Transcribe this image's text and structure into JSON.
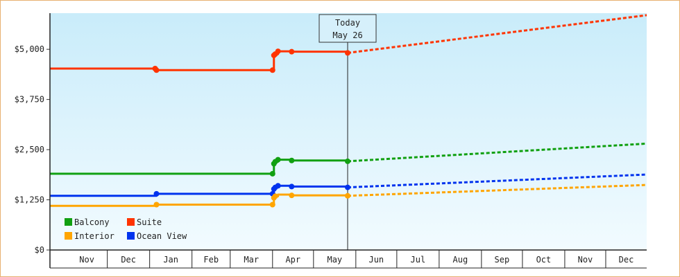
{
  "chart_data": {
    "type": "line",
    "y_ticks": [
      0,
      1250,
      2500,
      3750,
      5000
    ],
    "y_tick_labels": [
      "$0",
      "$1,250",
      "$2,500",
      "$3,750",
      "$5,000"
    ],
    "ylim": [
      0,
      5900
    ],
    "xlim": [
      "2024-10-20",
      "2025-12-31"
    ],
    "months": [
      {
        "label": "Nov",
        "start": "2024-11-01",
        "end": "2024-12-01"
      },
      {
        "label": "Dec",
        "start": "2024-12-01",
        "end": "2025-01-01"
      },
      {
        "label": "Jan",
        "start": "2025-01-01",
        "end": "2025-02-01"
      },
      {
        "label": "Feb",
        "start": "2025-02-01",
        "end": "2025-03-01"
      },
      {
        "label": "Mar",
        "start": "2025-03-01",
        "end": "2025-04-01"
      },
      {
        "label": "Apr",
        "start": "2025-04-01",
        "end": "2025-05-01"
      },
      {
        "label": "May",
        "start": "2025-05-01",
        "end": "2025-06-01"
      },
      {
        "label": "Jun",
        "start": "2025-06-01",
        "end": "2025-07-01"
      },
      {
        "label": "Jul",
        "start": "2025-07-01",
        "end": "2025-08-01"
      },
      {
        "label": "Aug",
        "start": "2025-08-01",
        "end": "2025-09-01"
      },
      {
        "label": "Sep",
        "start": "2025-09-01",
        "end": "2025-10-01"
      },
      {
        "label": "Oct",
        "start": "2025-10-01",
        "end": "2025-11-01"
      },
      {
        "label": "Nov",
        "start": "2025-11-01",
        "end": "2025-12-01"
      },
      {
        "label": "Dec",
        "start": "2025-12-01",
        "end": "2025-12-31"
      }
    ],
    "today": {
      "line1": "Today",
      "line2": "May 26",
      "date": "2025-05-26"
    },
    "legend": {
      "placement": "bottom-left"
    },
    "series": [
      {
        "name": "Suite",
        "color": "#ff3300",
        "history": [
          {
            "x": "2024-10-20",
            "y": 4520
          },
          {
            "x": "2025-01-05",
            "y": 4520
          },
          {
            "x": "2025-01-06",
            "y": 4480
          },
          {
            "x": "2025-04-01",
            "y": 4480
          },
          {
            "x": "2025-04-02",
            "y": 4850
          },
          {
            "x": "2025-04-03",
            "y": 4880
          },
          {
            "x": "2025-04-05",
            "y": 4950
          },
          {
            "x": "2025-04-15",
            "y": 4940
          },
          {
            "x": "2025-05-26",
            "y": 4910
          }
        ],
        "markers": [
          "2025-01-05",
          "2025-01-06",
          "2025-04-01",
          "2025-04-02",
          "2025-04-03",
          "2025-04-05",
          "2025-04-15",
          "2025-05-26"
        ],
        "forecast": [
          {
            "x": "2025-05-26",
            "y": 4910
          },
          {
            "x": "2025-12-31",
            "y": 5850
          }
        ]
      },
      {
        "name": "Balcony",
        "color": "#11a011",
        "history": [
          {
            "x": "2024-10-20",
            "y": 1900
          },
          {
            "x": "2025-04-01",
            "y": 1900
          },
          {
            "x": "2025-04-02",
            "y": 2150
          },
          {
            "x": "2025-04-03",
            "y": 2200
          },
          {
            "x": "2025-04-05",
            "y": 2250
          },
          {
            "x": "2025-04-15",
            "y": 2230
          },
          {
            "x": "2025-05-26",
            "y": 2210
          }
        ],
        "markers": [
          "2025-04-01",
          "2025-04-02",
          "2025-04-03",
          "2025-04-05",
          "2025-04-15",
          "2025-05-26"
        ],
        "forecast": [
          {
            "x": "2025-05-26",
            "y": 2210
          },
          {
            "x": "2025-12-31",
            "y": 2650
          }
        ]
      },
      {
        "name": "Ocean View",
        "color": "#0033ee",
        "history": [
          {
            "x": "2024-10-20",
            "y": 1350
          },
          {
            "x": "2025-01-05",
            "y": 1350
          },
          {
            "x": "2025-01-06",
            "y": 1400
          },
          {
            "x": "2025-04-01",
            "y": 1400
          },
          {
            "x": "2025-04-02",
            "y": 1520
          },
          {
            "x": "2025-04-03",
            "y": 1560
          },
          {
            "x": "2025-04-05",
            "y": 1600
          },
          {
            "x": "2025-04-15",
            "y": 1580
          },
          {
            "x": "2025-05-26",
            "y": 1560
          }
        ],
        "markers": [
          "2025-01-06",
          "2025-04-01",
          "2025-04-02",
          "2025-04-03",
          "2025-04-05",
          "2025-04-15",
          "2025-05-26"
        ],
        "forecast": [
          {
            "x": "2025-05-26",
            "y": 1560
          },
          {
            "x": "2025-12-31",
            "y": 1880
          }
        ]
      },
      {
        "name": "Interior",
        "color": "#ffa500",
        "history": [
          {
            "x": "2024-10-20",
            "y": 1100
          },
          {
            "x": "2025-01-05",
            "y": 1100
          },
          {
            "x": "2025-01-06",
            "y": 1130
          },
          {
            "x": "2025-04-01",
            "y": 1130
          },
          {
            "x": "2025-04-02",
            "y": 1300
          },
          {
            "x": "2025-04-03",
            "y": 1340
          },
          {
            "x": "2025-04-05",
            "y": 1380
          },
          {
            "x": "2025-04-15",
            "y": 1360
          },
          {
            "x": "2025-05-26",
            "y": 1350
          }
        ],
        "markers": [
          "2025-01-06",
          "2025-04-01",
          "2025-04-02",
          "2025-04-03",
          "2025-04-15",
          "2025-05-26"
        ],
        "forecast": [
          {
            "x": "2025-05-26",
            "y": 1350
          },
          {
            "x": "2025-12-31",
            "y": 1620
          }
        ]
      }
    ]
  }
}
